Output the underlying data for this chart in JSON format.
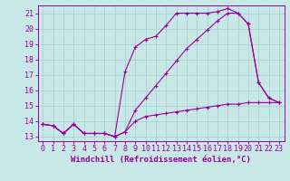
{
  "background_color": "#c8e8e8",
  "grid_color": "#b0d4d4",
  "line_color": "#990099",
  "xlabel": "Windchill (Refroidissement éolien,°C)",
  "xlabel_fontsize": 6.5,
  "tick_fontsize": 6,
  "xlim": [
    -0.5,
    23.5
  ],
  "ylim": [
    12.7,
    21.5
  ],
  "yticks": [
    13,
    14,
    15,
    16,
    17,
    18,
    19,
    20,
    21
  ],
  "xticks": [
    0,
    1,
    2,
    3,
    4,
    5,
    6,
    7,
    8,
    9,
    10,
    11,
    12,
    13,
    14,
    15,
    16,
    17,
    18,
    19,
    20,
    21,
    22,
    23
  ],
  "curve1_x": [
    0,
    1,
    2,
    3,
    4,
    5,
    6,
    7,
    8,
    9,
    10,
    11,
    12,
    13,
    14,
    15,
    16,
    17,
    18,
    19,
    20,
    21,
    22,
    23
  ],
  "curve1_y": [
    13.8,
    13.7,
    13.2,
    13.8,
    13.2,
    13.2,
    13.2,
    13.0,
    13.3,
    14.0,
    14.3,
    14.4,
    14.5,
    14.6,
    14.7,
    14.8,
    14.9,
    15.0,
    15.1,
    15.1,
    15.2,
    15.2,
    15.2,
    15.2
  ],
  "curve2_x": [
    0,
    1,
    2,
    3,
    4,
    5,
    6,
    7,
    8,
    9,
    10,
    11,
    12,
    13,
    14,
    15,
    16,
    17,
    18,
    19,
    20,
    21,
    22,
    23
  ],
  "curve2_y": [
    13.8,
    13.7,
    13.2,
    13.8,
    13.2,
    13.2,
    13.2,
    13.0,
    13.3,
    14.7,
    15.5,
    16.3,
    17.1,
    17.9,
    18.7,
    19.3,
    19.9,
    20.5,
    21.0,
    21.0,
    20.3,
    16.5,
    15.5,
    15.2
  ],
  "curve3_x": [
    0,
    1,
    2,
    3,
    4,
    5,
    6,
    7,
    8,
    9,
    10,
    11,
    12,
    13,
    14,
    15,
    16,
    17,
    18,
    19,
    20,
    21,
    22,
    23
  ],
  "curve3_y": [
    13.8,
    13.7,
    13.2,
    13.8,
    13.2,
    13.2,
    13.2,
    13.0,
    17.2,
    18.8,
    19.3,
    19.5,
    20.2,
    21.0,
    21.0,
    21.0,
    21.0,
    21.1,
    21.3,
    21.0,
    20.3,
    16.5,
    15.5,
    15.2
  ]
}
